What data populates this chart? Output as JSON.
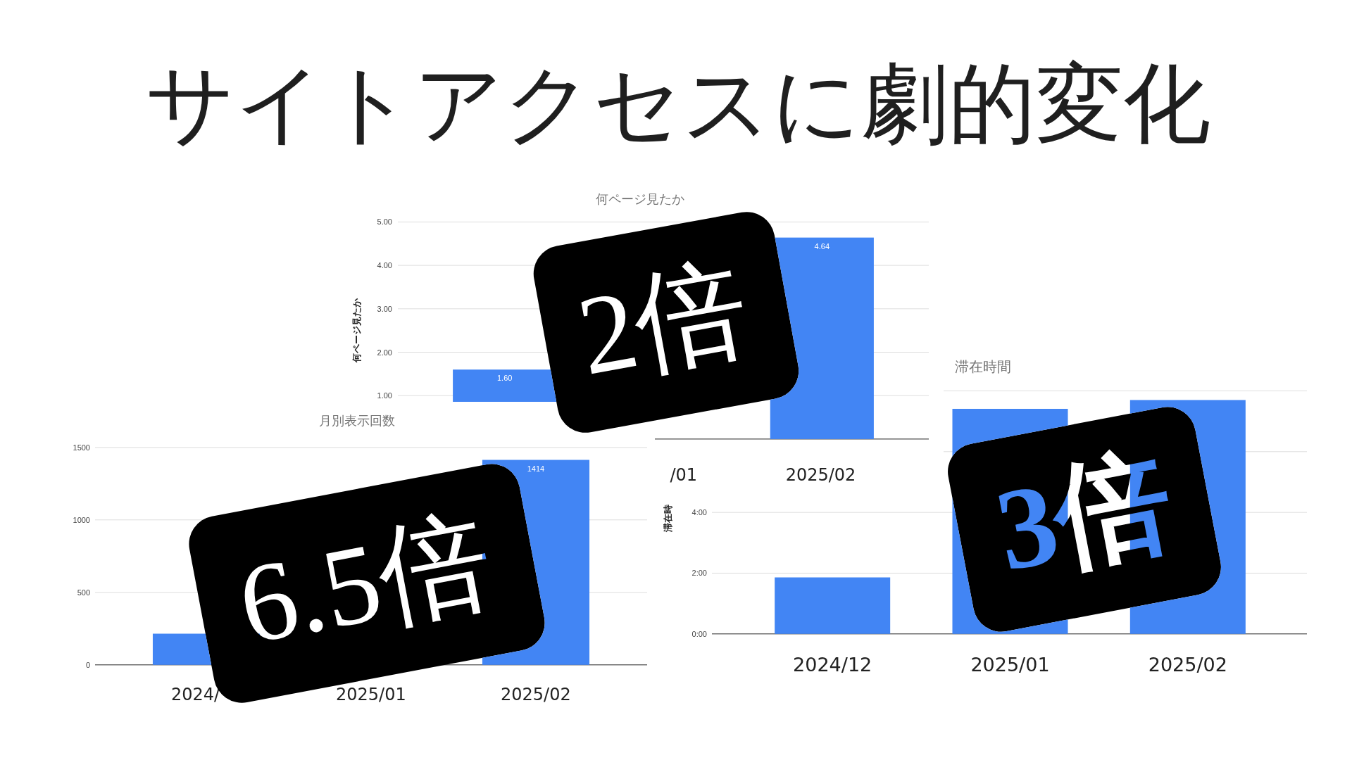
{
  "chart_data": [
    {
      "type": "other",
      "title": "サイトアクセスに劇的変化"
    },
    {
      "type": "bar",
      "title": "何ページ見たか",
      "ylabel": "何ページ見たか",
      "categories": [
        null,
        "/01",
        "2025/02"
      ],
      "values": [
        1.6,
        null,
        4.64
      ],
      "color": "#4285f4",
      "value_labels": [
        "1.60",
        null,
        "4.64"
      ],
      "ylim": [
        0,
        5
      ],
      "yticks": [
        {
          "value": 0,
          "label": null
        },
        {
          "value": 1,
          "label": "1.00"
        },
        {
          "value": 2,
          "label": "2.00"
        },
        {
          "value": 3,
          "label": "3.00"
        },
        {
          "value": 4,
          "label": "4.00"
        },
        {
          "value": 5,
          "label": "5.00"
        }
      ],
      "grid": "y",
      "annotations": [
        "2倍"
      ]
    },
    {
      "type": "bar",
      "title": "滞在時間",
      "ylabel": "滞在時",
      "categories": [
        "2024/12",
        "2025/01",
        "2025/02"
      ],
      "values": [
        1.86,
        7.41,
        7.7
      ],
      "color": "#4285f4",
      "ylim": [
        0,
        8
      ],
      "yticks": [
        {
          "value": 0,
          "label": "0:00"
        },
        {
          "value": 2,
          "label": "2:00"
        },
        {
          "value": 4,
          "label": "4:00"
        },
        {
          "value": 6,
          "label": null
        },
        {
          "value": 8,
          "label": null
        }
      ],
      "grid": "y",
      "annotations": [
        "3倍"
      ]
    },
    {
      "type": "bar",
      "title": "月別表示回数",
      "categories": [
        "2024/",
        "2025/01",
        "2025/02"
      ],
      "values": [
        215,
        null,
        1414
      ],
      "color": "#4285f4",
      "value_labels": [
        null,
        null,
        "1414"
      ],
      "ylim": [
        0,
        1500
      ],
      "yticks": [
        0,
        500,
        1000,
        1500
      ],
      "grid": "y",
      "annotations": [
        "6.5倍"
      ]
    }
  ]
}
